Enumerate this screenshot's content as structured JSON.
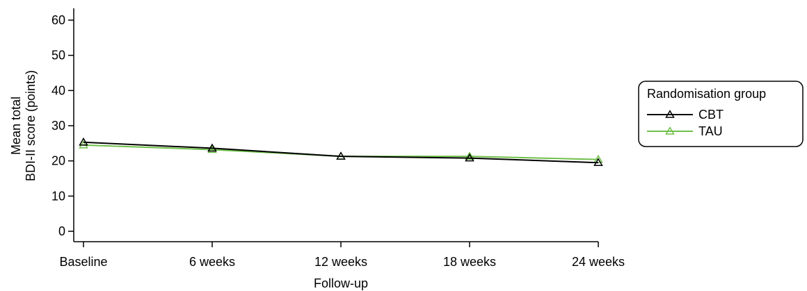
{
  "chart_data": {
    "type": "line",
    "categories": [
      "Baseline",
      "6 weeks",
      "12 weeks",
      "18 weeks",
      "24 weeks"
    ],
    "xlabel": "Follow-up",
    "ylabel_lines": [
      "Mean total",
      "BDI-II score (points)"
    ],
    "ylim": [
      0,
      60
    ],
    "yticks": [
      0,
      10,
      20,
      30,
      40,
      50,
      60
    ],
    "grid": false,
    "legend_position": "right",
    "legend_title": "Randomisation group",
    "series": [
      {
        "name": "CBT",
        "values": [
          25.3,
          23.6,
          21.3,
          20.8,
          19.5
        ],
        "color": "#000000"
      },
      {
        "name": "TAU",
        "values": [
          24.5,
          23.2,
          21.3,
          21.3,
          20.4
        ],
        "color": "#6fbf4a"
      }
    ]
  }
}
